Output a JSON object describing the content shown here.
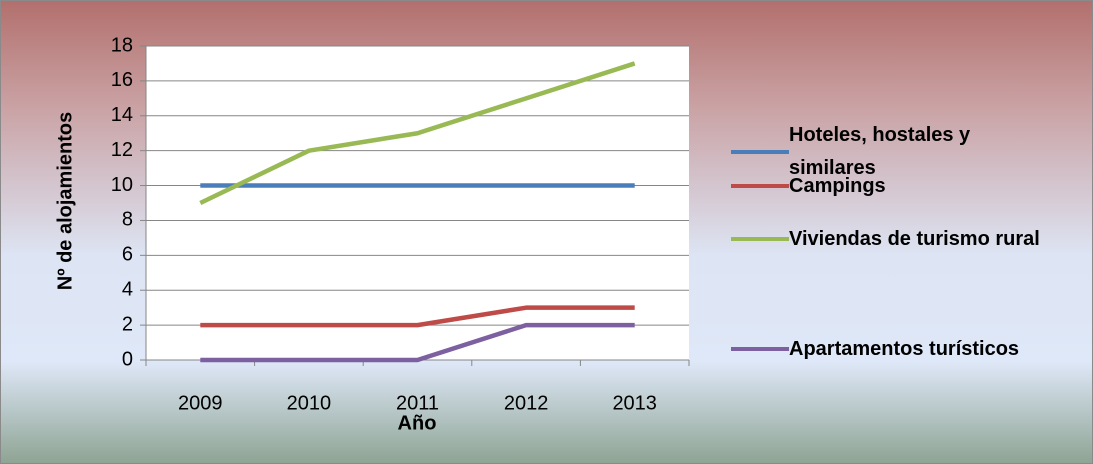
{
  "chart_data": {
    "type": "line",
    "xlabel": "Año",
    "ylabel": "Nº  de alojamientos",
    "categories": [
      "2009",
      "2010",
      "2011",
      "2012",
      "2013"
    ],
    "series": [
      {
        "name": "Hoteles, hostales y similares",
        "color": "#4a7ebb",
        "values": [
          10,
          10,
          10,
          10,
          10
        ]
      },
      {
        "name": "Campings",
        "color": "#be4b48",
        "values": [
          2,
          2,
          2,
          3,
          3
        ]
      },
      {
        "name": "Viviendas de turismo rural",
        "color": "#98b954",
        "values": [
          9,
          12,
          13,
          15,
          17
        ]
      },
      {
        "name": "Apartamentos turísticos",
        "color": "#7d60a0",
        "values": [
          0,
          0,
          0,
          2,
          2
        ]
      }
    ],
    "ylim": [
      0,
      18
    ],
    "yticks": [
      0,
      2,
      4,
      6,
      8,
      10,
      12,
      14,
      16,
      18
    ],
    "grid": true,
    "legend": "right"
  }
}
